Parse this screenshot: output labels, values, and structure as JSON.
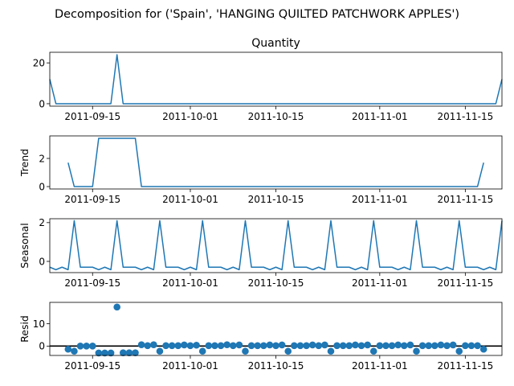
{
  "figure": {
    "suptitle": "Decomposition for ('Spain', 'HANGING QUILTED PATCHWORK APPLES')"
  },
  "colors": {
    "line": "#1f77b4",
    "axis": "#000000",
    "zero": "#000000"
  },
  "chart_data": [
    {
      "type": "line",
      "title": "Quantity",
      "ylabel": "",
      "x_start": "2011-09-08",
      "x_end": "2011-11-21",
      "yticks": [
        0,
        20
      ],
      "ylim": [
        -1.2,
        25.2
      ],
      "xtick_labels": [
        "2011-09-15",
        "2011-10-01",
        "2011-10-15",
        "2011-11-01",
        "2011-11-15"
      ],
      "points": [
        [
          "2011-09-08",
          12
        ],
        [
          "2011-09-09",
          0
        ],
        [
          "2011-09-18",
          0
        ],
        [
          "2011-09-19",
          24
        ],
        [
          "2011-09-20",
          0
        ],
        [
          "2011-11-20",
          0
        ],
        [
          "2011-11-21",
          12
        ]
      ]
    },
    {
      "type": "line",
      "title": "",
      "ylabel": "Trend",
      "x_start": "2011-09-08",
      "x_end": "2011-11-21",
      "yticks": [
        0,
        2
      ],
      "ylim": [
        -0.17,
        3.6
      ],
      "xtick_labels": [
        "2011-09-15",
        "2011-10-01",
        "2011-10-15",
        "2011-11-01",
        "2011-11-15"
      ],
      "points": [
        [
          "2011-09-11",
          1.7
        ],
        [
          "2011-09-12",
          0
        ],
        [
          "2011-09-15",
          0
        ],
        [
          "2011-09-16",
          3.43
        ],
        [
          "2011-09-22",
          3.43
        ],
        [
          "2011-09-23",
          0
        ],
        [
          "2011-11-17",
          0
        ],
        [
          "2011-11-18",
          1.7
        ]
      ]
    },
    {
      "type": "line",
      "title": "",
      "ylabel": "Seasonal",
      "x_start": "2011-09-08",
      "x_end": "2011-11-21",
      "yticks": [
        0,
        2
      ],
      "ylim": [
        -0.58,
        2.2
      ],
      "xtick_labels": [
        "2011-09-15",
        "2011-10-01",
        "2011-10-15",
        "2011-11-01",
        "2011-11-15"
      ],
      "period_days": 7,
      "pattern_start": "2011-09-08",
      "pattern": [
        -0.3,
        -0.43,
        -0.3,
        -0.43,
        2.1,
        -0.3,
        -0.3
      ]
    },
    {
      "type": "scatter",
      "title": "",
      "ylabel": "Resid",
      "x_start": "2011-09-08",
      "x_end": "2011-11-21",
      "yticks": [
        0,
        10
      ],
      "ylim": [
        -4.2,
        19.6
      ],
      "zero_line": true,
      "xtick_labels": [
        "2011-09-15",
        "2011-10-01",
        "2011-10-15",
        "2011-11-01",
        "2011-11-15"
      ],
      "points": [
        [
          "2011-09-11",
          -1.4
        ],
        [
          "2011-09-12",
          -2.3
        ],
        [
          "2011-09-13",
          0
        ],
        [
          "2011-09-14",
          0
        ],
        [
          "2011-09-15",
          0
        ],
        [
          "2011-09-16",
          -3.1
        ],
        [
          "2011-09-17",
          -3.1
        ],
        [
          "2011-09-18",
          -3.1
        ],
        [
          "2011-09-19",
          17.5
        ],
        [
          "2011-09-20",
          -3.0
        ],
        [
          "2011-09-21",
          -3.0
        ],
        [
          "2011-09-22",
          -3.0
        ],
        [
          "2011-09-23",
          0.6
        ],
        [
          "2011-09-24",
          0.2
        ],
        [
          "2011-09-25",
          0.6
        ],
        [
          "2011-09-26",
          -2.3
        ],
        [
          "2011-09-27",
          0.2
        ],
        [
          "2011-09-28",
          0.2
        ],
        [
          "2011-09-29",
          0.2
        ],
        [
          "2011-09-30",
          0.5
        ],
        [
          "2011-10-01",
          0.2
        ],
        [
          "2011-10-02",
          0.4
        ],
        [
          "2011-10-03",
          -2.3
        ],
        [
          "2011-10-04",
          0.2
        ],
        [
          "2011-10-05",
          0.2
        ],
        [
          "2011-10-06",
          0.2
        ],
        [
          "2011-10-07",
          0.6
        ],
        [
          "2011-10-08",
          0.2
        ],
        [
          "2011-10-09",
          0.5
        ],
        [
          "2011-10-10",
          -2.3
        ],
        [
          "2011-10-11",
          0.2
        ],
        [
          "2011-10-12",
          0.2
        ],
        [
          "2011-10-13",
          0.2
        ],
        [
          "2011-10-14",
          0.5
        ],
        [
          "2011-10-15",
          0.2
        ],
        [
          "2011-10-16",
          0.5
        ],
        [
          "2011-10-17",
          -2.3
        ],
        [
          "2011-10-18",
          0.2
        ],
        [
          "2011-10-19",
          0.2
        ],
        [
          "2011-10-20",
          0.2
        ],
        [
          "2011-10-21",
          0.5
        ],
        [
          "2011-10-22",
          0.2
        ],
        [
          "2011-10-23",
          0.5
        ],
        [
          "2011-10-24",
          -2.3
        ],
        [
          "2011-10-25",
          0.2
        ],
        [
          "2011-10-26",
          0.2
        ],
        [
          "2011-10-27",
          0.2
        ],
        [
          "2011-10-28",
          0.5
        ],
        [
          "2011-10-29",
          0.2
        ],
        [
          "2011-10-30",
          0.5
        ],
        [
          "2011-10-31",
          -2.3
        ],
        [
          "2011-11-01",
          0.2
        ],
        [
          "2011-11-02",
          0.2
        ],
        [
          "2011-11-03",
          0.2
        ],
        [
          "2011-11-04",
          0.5
        ],
        [
          "2011-11-05",
          0.2
        ],
        [
          "2011-11-06",
          0.5
        ],
        [
          "2011-11-07",
          -2.3
        ],
        [
          "2011-11-08",
          0.2
        ],
        [
          "2011-11-09",
          0.2
        ],
        [
          "2011-11-10",
          0.2
        ],
        [
          "2011-11-11",
          0.5
        ],
        [
          "2011-11-12",
          0.2
        ],
        [
          "2011-11-13",
          0.5
        ],
        [
          "2011-11-14",
          -2.3
        ],
        [
          "2011-11-15",
          0.2
        ],
        [
          "2011-11-16",
          0.2
        ],
        [
          "2011-11-17",
          0.2
        ],
        [
          "2011-11-18",
          -1.4
        ]
      ]
    }
  ]
}
